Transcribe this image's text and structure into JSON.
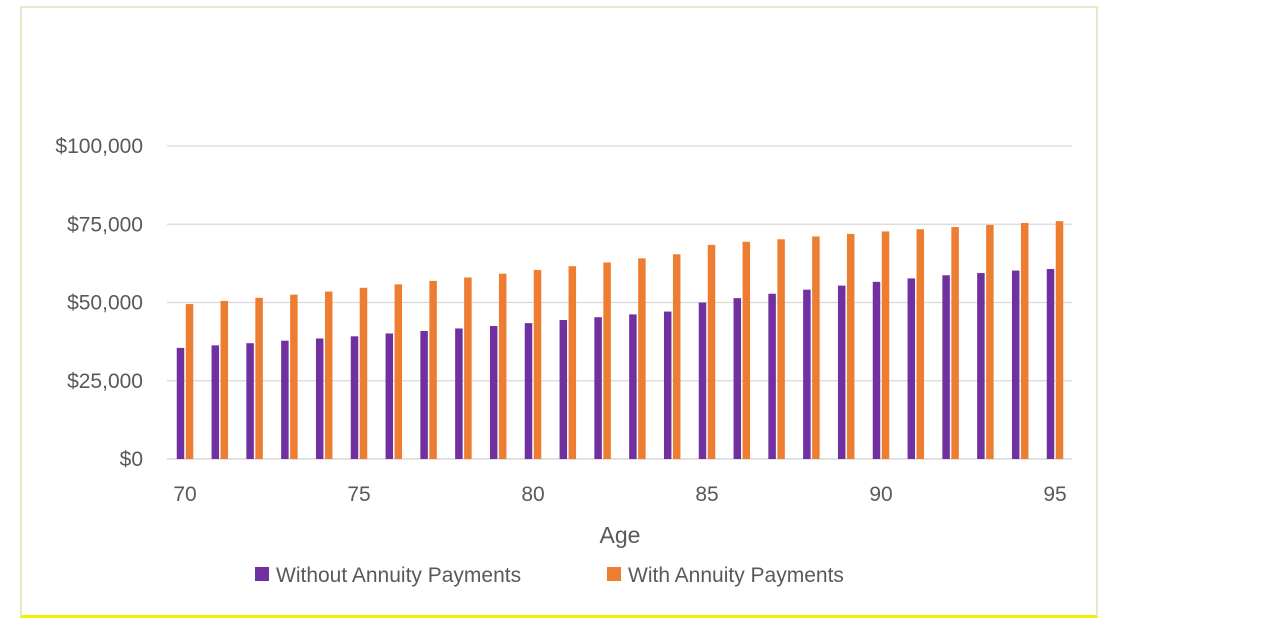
{
  "chart_data": {
    "type": "bar",
    "title": "",
    "xlabel": "Age",
    "ylabel": "",
    "ylim": [
      0,
      100000
    ],
    "y_ticks": [
      "$0",
      "$25,000",
      "$50,000",
      "$75,000",
      "$100,000"
    ],
    "y_tick_values": [
      0,
      25000,
      50000,
      75000,
      100000
    ],
    "x_tick_labels": [
      "70",
      "75",
      "80",
      "85",
      "90",
      "95"
    ],
    "x_tick_values": [
      70,
      75,
      80,
      85,
      90,
      95
    ],
    "grid": true,
    "legend_position": "bottom",
    "x": [
      70,
      71,
      72,
      73,
      74,
      75,
      76,
      77,
      78,
      79,
      80,
      81,
      82,
      83,
      84,
      85,
      86,
      87,
      88,
      89,
      90,
      91,
      92,
      93,
      94,
      95
    ],
    "series": [
      {
        "name": "Without Annuity Payments",
        "color": "#7030a0",
        "values": [
          35500,
          36300,
          37000,
          37800,
          38500,
          39200,
          40100,
          40900,
          41700,
          42500,
          43400,
          44400,
          45300,
          46200,
          47100,
          50000,
          51400,
          52800,
          54100,
          55400,
          56600,
          57700,
          58700,
          59400,
          60200,
          60700
        ]
      },
      {
        "name": "With Annuity Payments",
        "color": "#ed7d31",
        "values": [
          49500,
          50500,
          51500,
          52500,
          53500,
          54700,
          55800,
          56900,
          58000,
          59200,
          60400,
          61600,
          62800,
          64100,
          65400,
          68400,
          69400,
          70200,
          71100,
          71900,
          72700,
          73400,
          74100,
          74800,
          75400,
          76000
        ]
      }
    ]
  }
}
